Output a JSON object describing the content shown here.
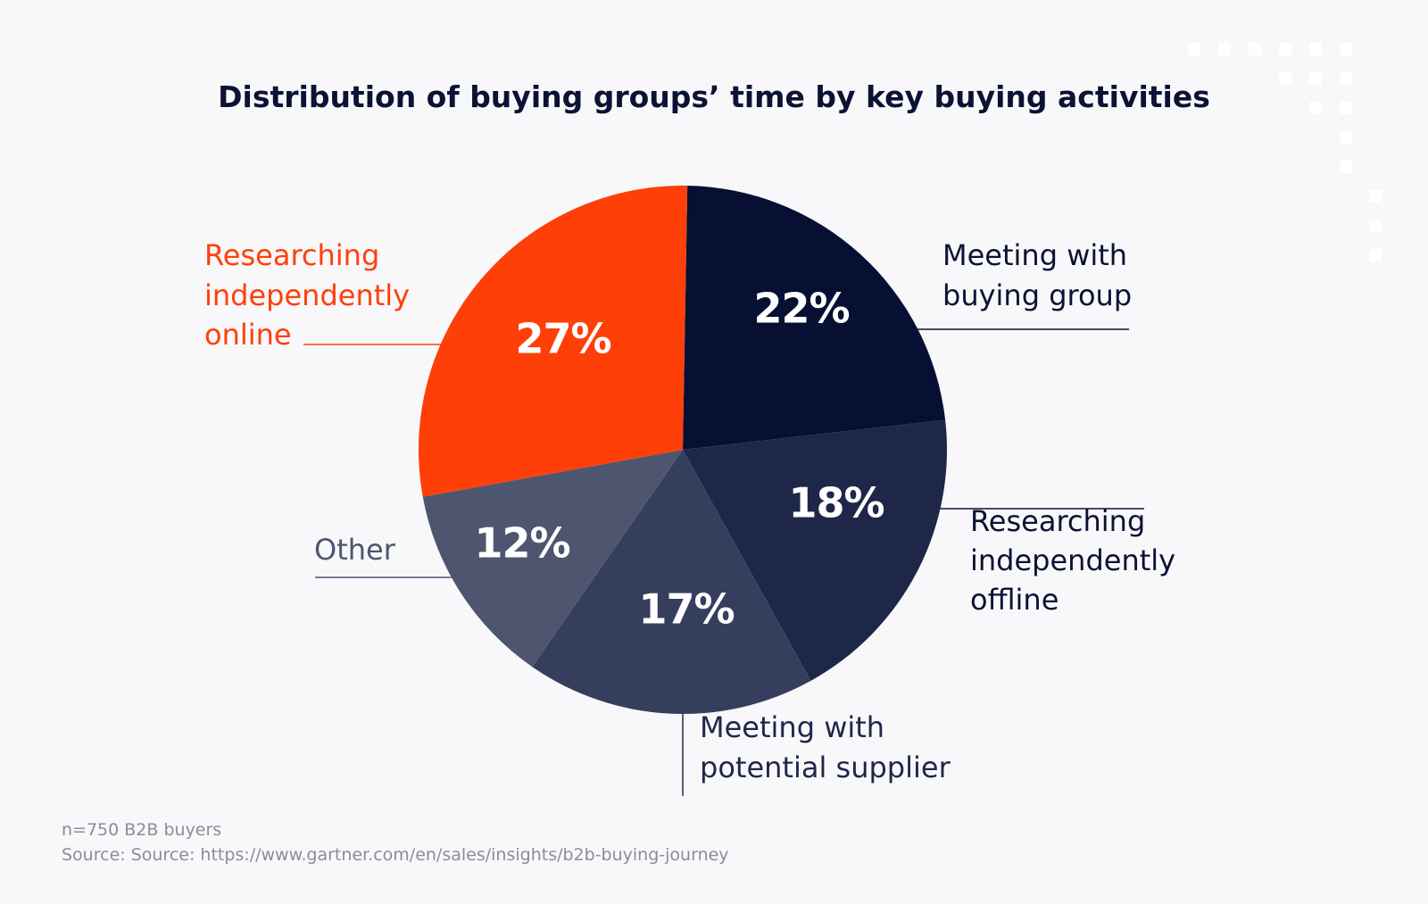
{
  "chart_data": {
    "type": "pie",
    "title": "Distribution of buying groups’ time by key buying activities",
    "start_angle_deg": 1,
    "direction": "clockwise",
    "slices": [
      {
        "label": "Meeting with buying group",
        "label_lines": [
          "Meeting with",
          "buying group"
        ],
        "value": 22,
        "display": "22%",
        "color": "#071033",
        "label_color": "#0b1233"
      },
      {
        "label": "Researching independently offline",
        "label_lines": [
          "Researching",
          "independently",
          "offline"
        ],
        "value": 18,
        "display": "18%",
        "color": "#1f2749",
        "label_color": "#0b1233"
      },
      {
        "label": "Meeting with potential supplier",
        "label_lines": [
          "Meeting with",
          "potential supplier"
        ],
        "value": 17,
        "display": "17%",
        "color": "#363e5d",
        "label_color": "#1f2749"
      },
      {
        "label": "Other",
        "label_lines": [
          "Other"
        ],
        "value": 12,
        "display": "12%",
        "color": "#4e566f",
        "label_color": "#4e566f"
      },
      {
        "label": "Researching independently online",
        "label_lines": [
          "Researching",
          "independently",
          "online"
        ],
        "value": 27,
        "display": "27%",
        "color": "#ff3f08",
        "label_color": "#ff3f08"
      }
    ]
  },
  "footnote": {
    "sample": "n=750 B2B buyers",
    "source": "Source: Source: https://www.gartner.com/en/sales/insights/b2b-buying-journey"
  },
  "colors": {
    "background": "#f8f8fb",
    "accent": "#ff3f08",
    "dark": "#0b1233",
    "decor": "#ffffff"
  }
}
